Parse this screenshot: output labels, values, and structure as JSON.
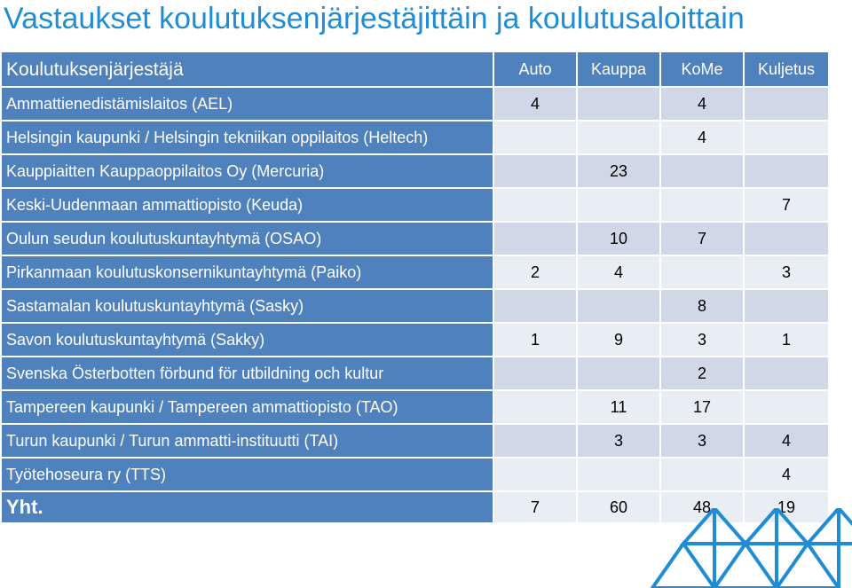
{
  "title": "Vastaukset koulutuksenjärjestäjittäin ja koulutusaloittain",
  "table": {
    "header": {
      "name": "Koulutuksenjärjestäjä",
      "cols": [
        "Auto",
        "Kauppa",
        "KoMe",
        "Kuljetus"
      ]
    },
    "rows": [
      {
        "name": "Ammattienedistämislaitos (AEL)",
        "vals": [
          "4",
          "",
          "4",
          ""
        ]
      },
      {
        "name": "Helsingin kaupunki / Helsingin tekniikan oppilaitos (Heltech)",
        "vals": [
          "",
          "",
          "4",
          ""
        ]
      },
      {
        "name": "Kauppiaitten Kauppaoppilaitos Oy (Mercuria)",
        "vals": [
          "",
          "23",
          "",
          ""
        ]
      },
      {
        "name": "Keski-Uudenmaan ammattiopisto (Keuda)",
        "vals": [
          "",
          "",
          "",
          "7"
        ]
      },
      {
        "name": "Oulun seudun koulutuskuntayhtymä (OSAO)",
        "vals": [
          "",
          "10",
          "7",
          ""
        ]
      },
      {
        "name": "Pirkanmaan koulutuskonsernikuntayhtymä (Paiko)",
        "vals": [
          "2",
          "4",
          "",
          "3"
        ]
      },
      {
        "name": "Sastamalan koulutuskuntayhtymä (Sasky)",
        "vals": [
          "",
          "",
          "8",
          ""
        ]
      },
      {
        "name": "Savon koulutuskuntayhtymä (Sakky)",
        "vals": [
          "1",
          "9",
          "3",
          "1"
        ]
      },
      {
        "name": "Svenska Österbotten förbund för utbildning och kultur",
        "vals": [
          "",
          "",
          "2",
          ""
        ]
      },
      {
        "name": "Tampereen kaupunki / Tampereen ammattiopisto (TAO)",
        "vals": [
          "",
          "11",
          "17",
          ""
        ]
      },
      {
        "name": "Turun kaupunki / Turun ammatti-instituutti (TAI)",
        "vals": [
          "",
          "3",
          "3",
          "4"
        ]
      },
      {
        "name": "Työtehoseura ry (TTS)",
        "vals": [
          "",
          "",
          "",
          "4"
        ]
      }
    ],
    "total": {
      "name": "Yht.",
      "vals": [
        "7",
        "60",
        "48",
        "19"
      ]
    }
  },
  "colors": {
    "accent": "#4f81bd",
    "title": "#1f8dd6",
    "row_light": "#e9edf4",
    "row_mid": "#d0d8e8",
    "decor": "#1f8dd6"
  }
}
